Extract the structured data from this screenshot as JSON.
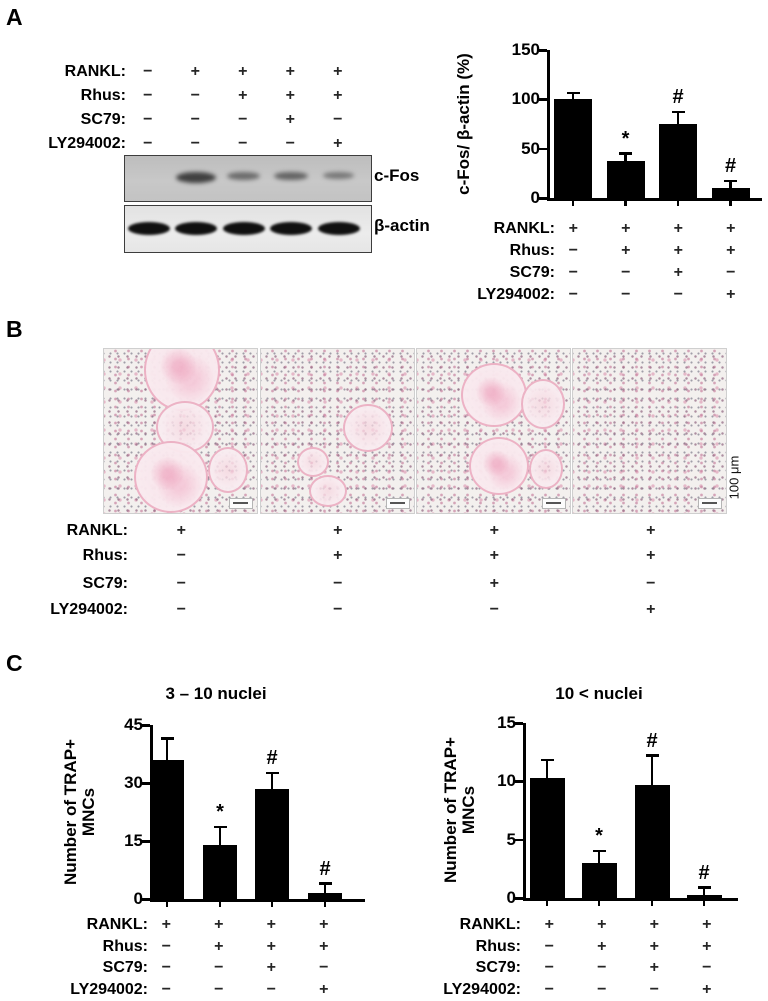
{
  "panels": {
    "a": {
      "letter": "A"
    },
    "b": {
      "letter": "B"
    },
    "c": {
      "letter": "C"
    }
  },
  "panel_a": {
    "blot": {
      "conditions": [
        {
          "label": "RANKL:",
          "values": [
            "−",
            "+",
            "+",
            "+",
            "+"
          ]
        },
        {
          "label": "Rhus:",
          "values": [
            "−",
            "−",
            "+",
            "+",
            "+"
          ]
        },
        {
          "label": "SC79:",
          "values": [
            "−",
            "−",
            "−",
            "+",
            "−"
          ]
        },
        {
          "label": "LY294002:",
          "values": [
            "−",
            "−",
            "−",
            "−",
            "+"
          ]
        }
      ],
      "targets": [
        {
          "name": "c-Fos",
          "band_intensities": [
            0,
            1.0,
            0.45,
            0.55,
            0.3
          ]
        },
        {
          "name": "β-actin",
          "band_intensities": [
            1,
            1,
            1,
            1,
            1
          ]
        }
      ]
    }
  },
  "panel_b": {
    "scale_label": "100 μm",
    "conditions": [
      {
        "label": "RANKL:",
        "values": [
          "+",
          "+",
          "+",
          "+"
        ]
      },
      {
        "label": "Rhus:",
        "values": [
          "−",
          "+",
          "+",
          "+"
        ]
      },
      {
        "label": "SC79:",
        "values": [
          "−",
          "−",
          "+",
          "−"
        ]
      },
      {
        "label": "LY294002:",
        "values": [
          "−",
          "−",
          "−",
          "+"
        ]
      }
    ]
  },
  "chart_data": [
    {
      "id": "panel_a_quantification",
      "type": "bar",
      "title": "",
      "ylabel": "c-Fos/ β-actin (%)",
      "ylim": [
        0,
        150
      ],
      "yticks": [
        0,
        50,
        100,
        150
      ],
      "values": [
        100,
        38,
        75,
        10
      ],
      "errors": [
        6,
        7,
        12,
        7
      ],
      "sig": [
        "",
        "*",
        "#",
        "#"
      ],
      "conditions": [
        {
          "label": "RANKL:",
          "values": [
            "+",
            "+",
            "+",
            "+"
          ]
        },
        {
          "label": "Rhus:",
          "values": [
            "−",
            "+",
            "+",
            "+"
          ]
        },
        {
          "label": "SC79:",
          "values": [
            "−",
            "−",
            "+",
            "−"
          ]
        },
        {
          "label": "LY294002:",
          "values": [
            "−",
            "−",
            "−",
            "+"
          ]
        }
      ]
    },
    {
      "id": "panel_c_3_10_nuclei",
      "type": "bar",
      "title": "3 – 10 nuclei",
      "ylabel": "Number of TRAP+ MNCs",
      "ylabel_lines": [
        "Number of TRAP+",
        "MNCs"
      ],
      "ylim": [
        0,
        45
      ],
      "yticks": [
        0,
        15,
        30,
        45
      ],
      "values": [
        36,
        14,
        28.5,
        1.5
      ],
      "errors": [
        5.5,
        4.5,
        4,
        2.5
      ],
      "sig": [
        "",
        "*",
        "#",
        "#"
      ],
      "conditions": [
        {
          "label": "RANKL:",
          "values": [
            "+",
            "+",
            "+",
            "+"
          ]
        },
        {
          "label": "Rhus:",
          "values": [
            "−",
            "+",
            "+",
            "+"
          ]
        },
        {
          "label": "SC79:",
          "values": [
            "−",
            "−",
            "+",
            "−"
          ]
        },
        {
          "label": "LY294002:",
          "values": [
            "−",
            "−",
            "−",
            "+"
          ]
        }
      ]
    },
    {
      "id": "panel_c_over_10_nuclei",
      "type": "bar",
      "title": "10 < nuclei",
      "ylabel": "Number of TRAP+ MNCs",
      "ylabel_lines": [
        "Number of TRAP+",
        "MNCs"
      ],
      "ylim": [
        0,
        15
      ],
      "yticks": [
        0,
        5,
        10,
        15
      ],
      "values": [
        10.3,
        3,
        9.7,
        0.3
      ],
      "errors": [
        1.5,
        1,
        2.5,
        0.6
      ],
      "sig": [
        "",
        "*",
        "#",
        "#"
      ],
      "conditions": [
        {
          "label": "RANKL:",
          "values": [
            "+",
            "+",
            "+",
            "+"
          ]
        },
        {
          "label": "Rhus:",
          "values": [
            "−",
            "+",
            "+",
            "+"
          ]
        },
        {
          "label": "SC79:",
          "values": [
            "−",
            "−",
            "+",
            "−"
          ]
        },
        {
          "label": "LY294002:",
          "values": [
            "−",
            "−",
            "−",
            "+"
          ]
        }
      ]
    }
  ]
}
